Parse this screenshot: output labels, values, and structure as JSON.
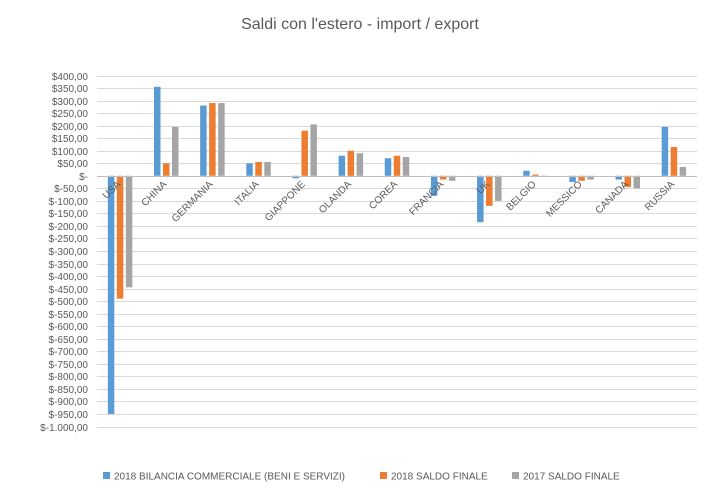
{
  "chart_data": {
    "type": "bar",
    "title": "Saldi con l'estero - import / export",
    "xlabel": "",
    "ylabel": "",
    "categories": [
      "USA",
      "CHINA",
      "GERMANIA",
      "ITALIA",
      "GIAPPONE",
      "OLANDA",
      "COREA",
      "FRANCIA",
      "UK",
      "BELGIO",
      "MESSICO",
      "CANADA",
      "RUSSIA"
    ],
    "series": [
      {
        "name": "2018 BILANCIA COMMERCIALE (BENI E SERVIZI)",
        "color": "#5B9BD5",
        "values": [
          -950,
          355,
          280,
          50,
          -10,
          80,
          70,
          -80,
          -185,
          20,
          -25,
          -15,
          195
        ]
      },
      {
        "name": "2018 SALDO FINALE",
        "color": "#ED7D31",
        "values": [
          -490,
          50,
          290,
          55,
          180,
          100,
          80,
          -15,
          -120,
          5,
          -20,
          -45,
          115
        ]
      },
      {
        "name": "2017 SALDO FINALE",
        "color": "#A5A5A5",
        "values": [
          -445,
          195,
          290,
          55,
          205,
          90,
          75,
          -20,
          -100,
          -5,
          -15,
          -50,
          35
        ]
      }
    ],
    "ylim": [
      -1000,
      400
    ],
    "ytick_step": 50,
    "ytick_labels": [
      "$400,00",
      "$350,00",
      "$300,00",
      "$250,00",
      "$200,00",
      "$150,00",
      "$100,00",
      "$50,00",
      "$-",
      "$-50,00",
      "$-100,00",
      "$-150,00",
      "$-200,00",
      "$-250,00",
      "$-300,00",
      "$-350,00",
      "$-400,00",
      "$-450,00",
      "$-500,00",
      "$-550,00",
      "$-600,00",
      "$-650,00",
      "$-700,00",
      "$-750,00",
      "$-800,00",
      "$-850,00",
      "$-900,00",
      "$-950,00",
      "$-1.000,00"
    ],
    "grid": true,
    "legend_position": "bottom"
  }
}
